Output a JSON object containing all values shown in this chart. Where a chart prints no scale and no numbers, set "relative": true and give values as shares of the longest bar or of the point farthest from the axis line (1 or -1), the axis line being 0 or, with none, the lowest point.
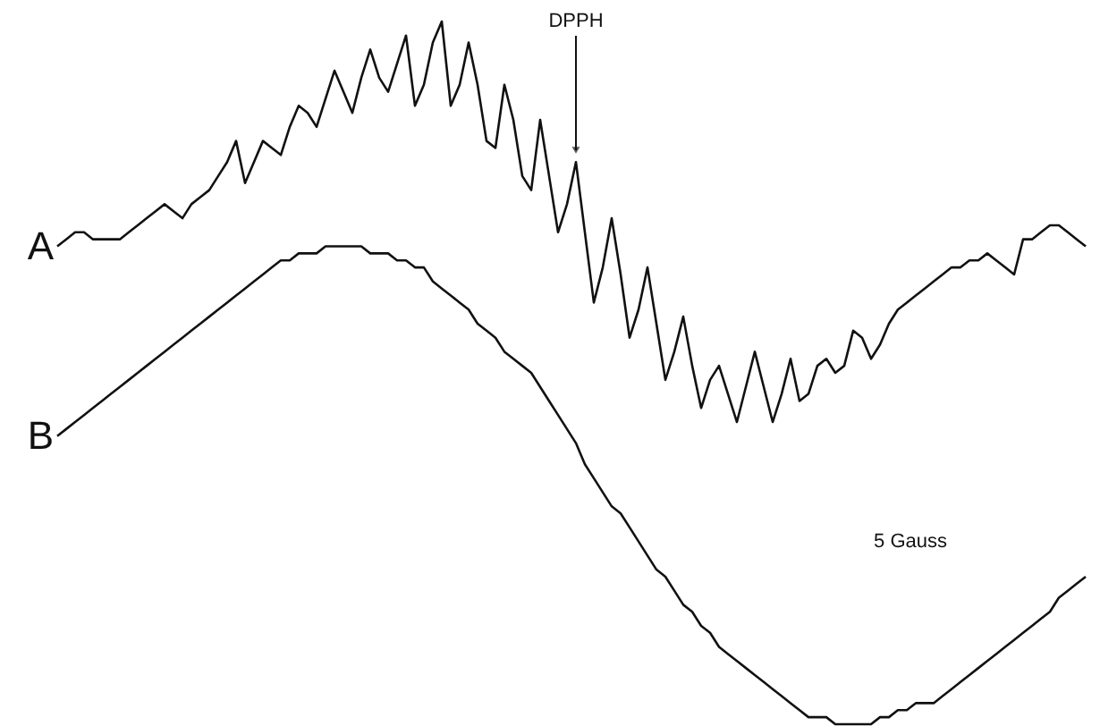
{
  "chart_data": {
    "type": "line",
    "relative": true,
    "categories": [
      null,
      null,
      null,
      null,
      null,
      null,
      null,
      null,
      null,
      null,
      null,
      null,
      null,
      null,
      null,
      null,
      null,
      null,
      null,
      null,
      null,
      null,
      null,
      null,
      null,
      null,
      null,
      null,
      null,
      null,
      null,
      null,
      null,
      null,
      null,
      null,
      null,
      null,
      null,
      null,
      null,
      null,
      null,
      null,
      null,
      null,
      null,
      null,
      null,
      null,
      null,
      null,
      null,
      null,
      null,
      null,
      null,
      null,
      null,
      null,
      null,
      null,
      null,
      null,
      null,
      null,
      null,
      null,
      null,
      null,
      null,
      null,
      null,
      null,
      null,
      null,
      null,
      null,
      null,
      null,
      null,
      null,
      null,
      null,
      null,
      null,
      null,
      null,
      null,
      null,
      null,
      null,
      null,
      null,
      null,
      null,
      null,
      null,
      null,
      null,
      null,
      null,
      null,
      null,
      null,
      null,
      null,
      null,
      null,
      null,
      null,
      null,
      null,
      null,
      null,
      null
    ],
    "series": [
      {
        "name": "A",
        "color": "#111111",
        "values": [
          0.68,
          0.69,
          0.7,
          0.7,
          0.69,
          0.69,
          0.69,
          0.69,
          0.7,
          0.71,
          0.72,
          0.73,
          0.74,
          0.73,
          0.72,
          0.74,
          0.75,
          0.76,
          0.78,
          0.8,
          0.83,
          0.77,
          0.8,
          0.83,
          0.82,
          0.81,
          0.85,
          0.88,
          0.87,
          0.85,
          0.89,
          0.93,
          0.9,
          0.87,
          0.92,
          0.96,
          0.92,
          0.9,
          0.94,
          0.98,
          0.88,
          0.91,
          0.97,
          1.0,
          0.88,
          0.91,
          0.97,
          0.91,
          0.83,
          0.82,
          0.91,
          0.86,
          0.78,
          0.76,
          0.86,
          0.78,
          0.7,
          0.74,
          0.8,
          0.7,
          0.6,
          0.65,
          0.72,
          0.64,
          0.55,
          0.59,
          0.65,
          0.57,
          0.49,
          0.53,
          0.58,
          0.51,
          0.45,
          0.49,
          0.51,
          0.47,
          0.43,
          0.48,
          0.53,
          0.48,
          0.43,
          0.47,
          0.52,
          0.46,
          0.47,
          0.51,
          0.52,
          0.5,
          0.51,
          0.56,
          0.55,
          0.52,
          0.54,
          0.57,
          0.59,
          0.6,
          0.61,
          0.62,
          0.63,
          0.64,
          0.65,
          0.65,
          0.66,
          0.66,
          0.67,
          0.66,
          0.65,
          0.64,
          0.69,
          0.69,
          0.7,
          0.71,
          0.71,
          0.7,
          0.69,
          0.68
        ]
      },
      {
        "name": "B",
        "color": "#111111",
        "values": [
          0.41,
          0.42,
          0.43,
          0.44,
          0.45,
          0.46,
          0.47,
          0.48,
          0.49,
          0.5,
          0.51,
          0.52,
          0.53,
          0.54,
          0.55,
          0.56,
          0.57,
          0.58,
          0.59,
          0.6,
          0.61,
          0.62,
          0.63,
          0.64,
          0.65,
          0.66,
          0.66,
          0.67,
          0.67,
          0.67,
          0.68,
          0.68,
          0.68,
          0.68,
          0.68,
          0.67,
          0.67,
          0.67,
          0.66,
          0.66,
          0.65,
          0.65,
          0.63,
          0.62,
          0.61,
          0.6,
          0.59,
          0.57,
          0.56,
          0.55,
          0.53,
          0.52,
          0.51,
          0.5,
          0.48,
          0.46,
          0.44,
          0.42,
          0.4,
          0.37,
          0.35,
          0.33,
          0.31,
          0.3,
          0.28,
          0.26,
          0.24,
          0.22,
          0.21,
          0.19,
          0.17,
          0.16,
          0.14,
          0.13,
          0.11,
          0.1,
          0.09,
          0.08,
          0.07,
          0.06,
          0.05,
          0.04,
          0.03,
          0.02,
          0.01,
          0.01,
          0.01,
          0,
          0,
          0,
          0,
          0,
          0.01,
          0.01,
          0.02,
          0.02,
          0.03,
          0.03,
          0.03,
          0.04,
          0.05,
          0.06,
          0.07,
          0.08,
          0.09,
          0.1,
          0.11,
          0.12,
          0.13,
          0.14,
          0.15,
          0.16,
          0.18,
          0.19,
          0.2,
          0.21
        ]
      }
    ],
    "annotations": [
      "DPPH",
      "5 Gauss"
    ]
  }
}
